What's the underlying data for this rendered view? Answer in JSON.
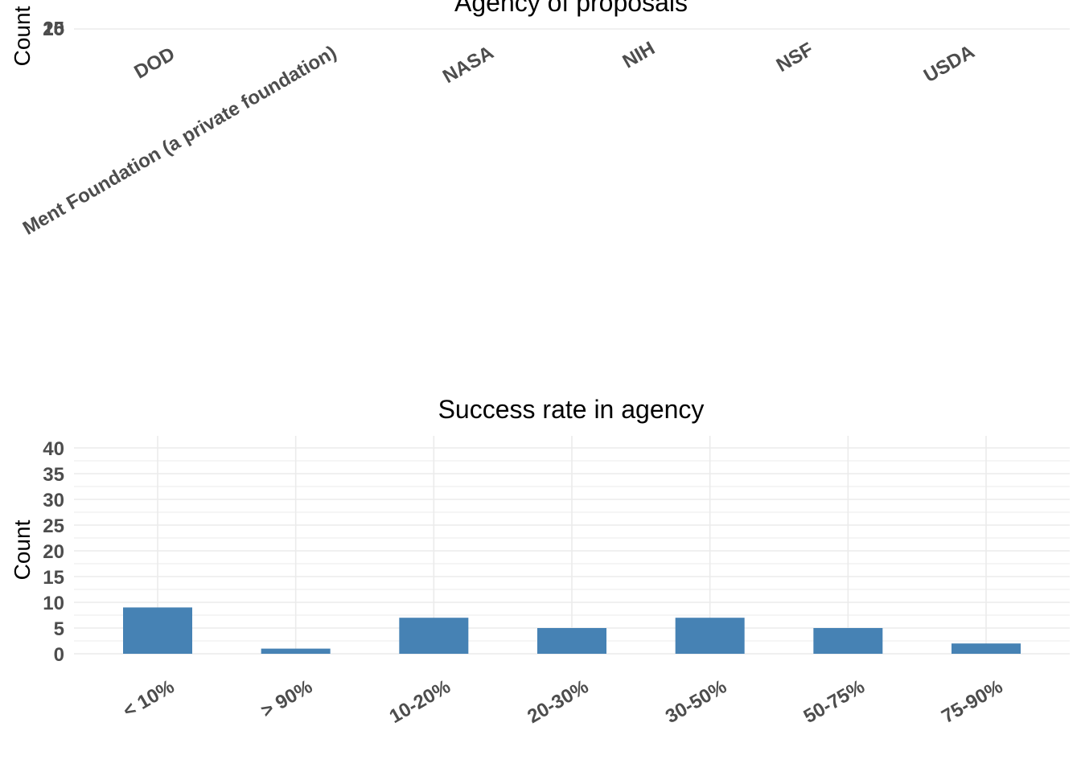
{
  "chart_data": [
    {
      "type": "bar",
      "title": "Agency of proposals",
      "ylabel": "Count",
      "categories": [
        "DOD",
        "Ment Foundation (a private foundation)",
        "NASA",
        "NIH",
        "NSF",
        "USDA"
      ],
      "values": [
        null,
        null,
        null,
        null,
        null,
        null
      ],
      "y_ticks": [
        "0",
        "5",
        "10",
        "15",
        "20",
        "25"
      ],
      "grid": true,
      "color": "#4682b4"
    },
    {
      "type": "bar",
      "title": "Success rate in agency",
      "ylabel": "Count",
      "categories": [
        "< 10%",
        "> 90%",
        "10-20%",
        "20-30%",
        "30-50%",
        "50-75%",
        "75-90%"
      ],
      "values": [
        9,
        1,
        7,
        5,
        7,
        5,
        2
      ],
      "ylim": [
        0,
        40
      ],
      "y_ticks": [
        0,
        5,
        10,
        15,
        20,
        25,
        30,
        35,
        40
      ],
      "grid": true,
      "color": "#4682b4"
    }
  ]
}
